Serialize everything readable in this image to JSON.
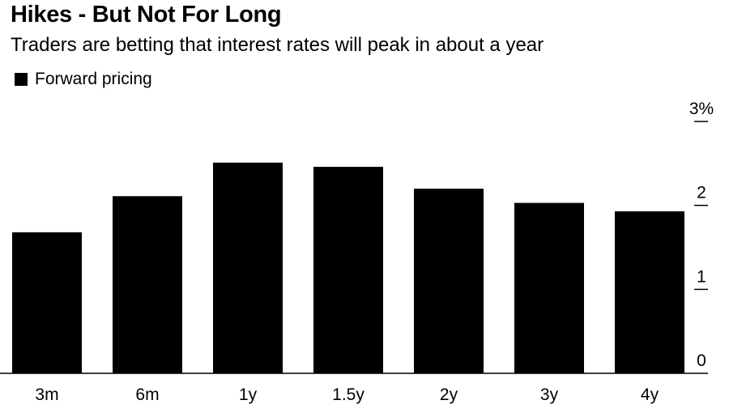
{
  "chart_data": {
    "type": "bar",
    "title": "Hikes - But Not For Long",
    "subtitle": "Traders are betting that interest rates will peak in about a year",
    "legend": {
      "placement": "top-left",
      "entries": [
        "Forward pricing"
      ]
    },
    "categories": [
      "3m",
      "6m",
      "1y",
      "1.5y",
      "2y",
      "3y",
      "4y"
    ],
    "series": [
      {
        "name": "Forward pricing",
        "values": [
          1.68,
          2.11,
          2.51,
          2.46,
          2.2,
          2.03,
          1.93
        ],
        "color": "#000000"
      }
    ],
    "xlabel": "",
    "ylabel": "",
    "ylim": [
      0,
      3
    ],
    "y_ticks": [
      {
        "value": 0,
        "label": "0"
      },
      {
        "value": 1,
        "label": "1"
      },
      {
        "value": 2,
        "label": "2"
      },
      {
        "value": 3,
        "label": "3%"
      }
    ],
    "y_axis_side": "right",
    "grid": false
  }
}
